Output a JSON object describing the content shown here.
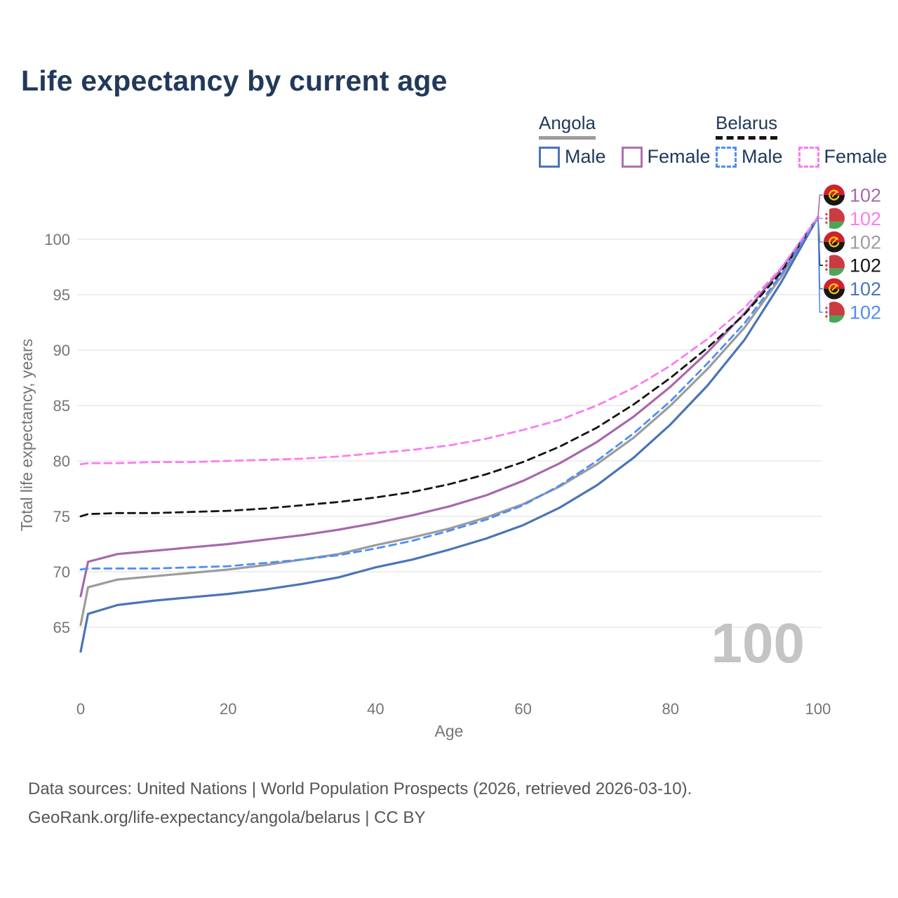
{
  "title": "Life expectancy by current age",
  "legend": {
    "groups": [
      {
        "country": "Angola",
        "underline_style": "solid",
        "underline_color": "#9c9c9c",
        "items": [
          {
            "label": "Male",
            "color": "#4a74b8",
            "dash": "solid"
          },
          {
            "label": "Female",
            "color": "#b06fb0",
            "dash": "solid"
          }
        ]
      },
      {
        "country": "Belarus",
        "underline_style": "dashed",
        "underline_color": "#141414",
        "items": [
          {
            "label": "Male",
            "color": "#4d8ef5",
            "dash": "dashed"
          },
          {
            "label": "Female",
            "color": "#fb7cf1",
            "dash": "dashed"
          }
        ]
      }
    ]
  },
  "chart_data": {
    "type": "line",
    "title": "Life expectancy by current age",
    "xlabel": "Age",
    "ylabel": "Total life expectancy, years",
    "x_ticks": [
      0,
      20,
      40,
      60,
      80,
      100
    ],
    "y_ticks": [
      65,
      70,
      75,
      80,
      85,
      90,
      95,
      100
    ],
    "xlim": [
      0,
      100
    ],
    "ylim": [
      62,
      102
    ],
    "grid": "horizontal-only",
    "legend_position": "top-right",
    "watermark": "100",
    "x": [
      0,
      1,
      5,
      10,
      15,
      20,
      25,
      30,
      35,
      40,
      45,
      50,
      55,
      60,
      65,
      70,
      75,
      80,
      85,
      90,
      95,
      100
    ],
    "series": [
      {
        "name": "Angola Female",
        "country": "Angola",
        "sex": "Female",
        "color": "#a868ab",
        "dash": "solid",
        "end_label": "102",
        "flag": "angola",
        "values": [
          67.8,
          70.9,
          71.6,
          71.9,
          72.2,
          72.5,
          72.9,
          73.3,
          73.8,
          74.4,
          75.1,
          75.9,
          76.9,
          78.2,
          79.8,
          81.7,
          84.0,
          86.7,
          89.8,
          93.3,
          97.3,
          102
        ]
      },
      {
        "name": "Belarus Female",
        "country": "Belarus",
        "sex": "Female",
        "color": "#fb7cf1",
        "dash": "dashed",
        "end_label": "102",
        "flag": "belarus",
        "values": [
          79.7,
          79.8,
          79.8,
          79.9,
          79.9,
          80.0,
          80.1,
          80.2,
          80.4,
          80.7,
          81.0,
          81.4,
          82.0,
          82.8,
          83.7,
          85.0,
          86.6,
          88.6,
          91.0,
          93.8,
          97.4,
          102
        ]
      },
      {
        "name": "Angola Both sexes",
        "country": "Angola",
        "sex": "Both",
        "color": "#9c9c9c",
        "dash": "solid",
        "end_label": "102",
        "flag": "angola",
        "values": [
          65.2,
          68.6,
          69.3,
          69.6,
          69.9,
          70.2,
          70.6,
          71.1,
          71.6,
          72.4,
          73.1,
          73.9,
          74.9,
          76.1,
          77.7,
          79.7,
          82.1,
          85.0,
          88.3,
          92.0,
          96.6,
          102
        ]
      },
      {
        "name": "Belarus Both sexes",
        "country": "Belarus",
        "sex": "Both",
        "color": "#141414",
        "dash": "dashed",
        "end_label": "102",
        "flag": "belarus",
        "values": [
          75.0,
          75.2,
          75.3,
          75.3,
          75.4,
          75.5,
          75.7,
          76.0,
          76.3,
          76.7,
          77.2,
          77.9,
          78.8,
          79.9,
          81.3,
          83.0,
          85.1,
          87.5,
          90.2,
          93.2,
          97.0,
          102
        ]
      },
      {
        "name": "Angola Male",
        "country": "Angola",
        "sex": "Male",
        "color": "#4a74b8",
        "dash": "solid",
        "end_label": "102",
        "flag": "angola",
        "values": [
          62.8,
          66.2,
          67.0,
          67.4,
          67.7,
          68.0,
          68.4,
          68.9,
          69.5,
          70.4,
          71.1,
          72.0,
          73.0,
          74.2,
          75.8,
          77.8,
          80.3,
          83.3,
          86.8,
          90.9,
          96.1,
          102
        ]
      },
      {
        "name": "Belarus Male",
        "country": "Belarus",
        "sex": "Male",
        "color": "#4d8ef5",
        "dash": "dashed",
        "end_label": "102",
        "flag": "belarus",
        "values": [
          70.2,
          70.3,
          70.3,
          70.3,
          70.4,
          70.5,
          70.8,
          71.1,
          71.5,
          72.1,
          72.8,
          73.7,
          74.7,
          76.0,
          77.8,
          80.0,
          82.5,
          85.4,
          88.8,
          92.4,
          96.8,
          102
        ]
      }
    ],
    "z_order": [
      2,
      4,
      0,
      3,
      5,
      1
    ]
  },
  "flags": {
    "angola": {
      "red": "#cf2130",
      "black": "#16161e",
      "yellow": "#f7c500"
    },
    "belarus": {
      "red": "#cc3a42",
      "green": "#4aa657",
      "white": "#ffffff",
      "ornament": "#c96067"
    }
  },
  "footer": {
    "line1": "Data sources: United Nations | World Population Prospects (2026, retrieved 2026-03-10).",
    "line2": "GeoRank.org/life-expectancy/angola/belarus | CC BY"
  },
  "colors": {
    "title": "#21395b",
    "axis_text": "#757575",
    "gridline": "#e9e9e9",
    "watermark": "#c4c4c4",
    "footer_text": "#565656"
  }
}
